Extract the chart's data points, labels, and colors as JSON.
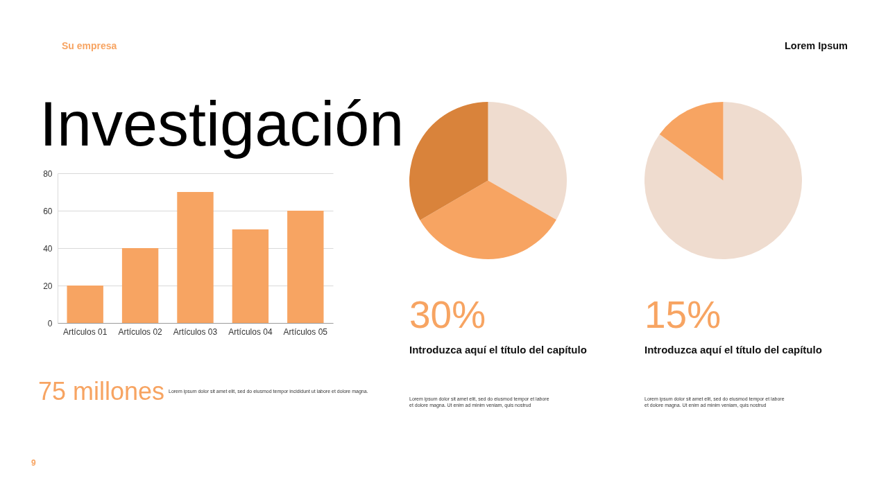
{
  "chart_data": [
    {
      "type": "bar",
      "title": "Investigación",
      "categories": [
        "Artículos 01",
        "Artículos 02",
        "Artículos 03",
        "Artículos 04",
        "Artículos 05"
      ],
      "values": [
        20,
        40,
        70,
        50,
        60
      ],
      "color": "#f7a462",
      "ylim": [
        0,
        80
      ],
      "yticks": [
        0,
        20,
        40,
        60,
        80
      ],
      "grid": "y",
      "annotations": [
        "Su empresa",
        "Lorem Ipsum",
        "75 millones",
        "Lorem ipsum dolor sit amet elit, sed do eiusmod tempor incididunt ut labore et dolore magna.",
        "9"
      ]
    },
    {
      "type": "pie",
      "categories": [
        null,
        null,
        null
      ],
      "values": [
        33.3,
        33.3,
        33.4
      ],
      "colors": [
        "#efdccf",
        "#f7a462",
        "#d9833b"
      ],
      "annotations": [
        "30%",
        "Introduzca aquí el título del capítulo",
        "Lorem ipsum dolor sit amet elit, sed do eiusmod tempor et labore et dolore magna. Ut enim ad minim veniam, quis nostrud"
      ]
    },
    {
      "type": "pie",
      "categories": [
        null,
        null
      ],
      "values": [
        85,
        15
      ],
      "colors": [
        "#efdccf",
        "#f7a462"
      ],
      "annotations": [
        "15%",
        "Introduzca aquí el título del capítulo",
        "Lorem ipsum dolor sit amet elit, sed do eiusmod tempor et labore et dolore magna. Ut enim ad minim veniam, quis nostrud"
      ]
    }
  ]
}
